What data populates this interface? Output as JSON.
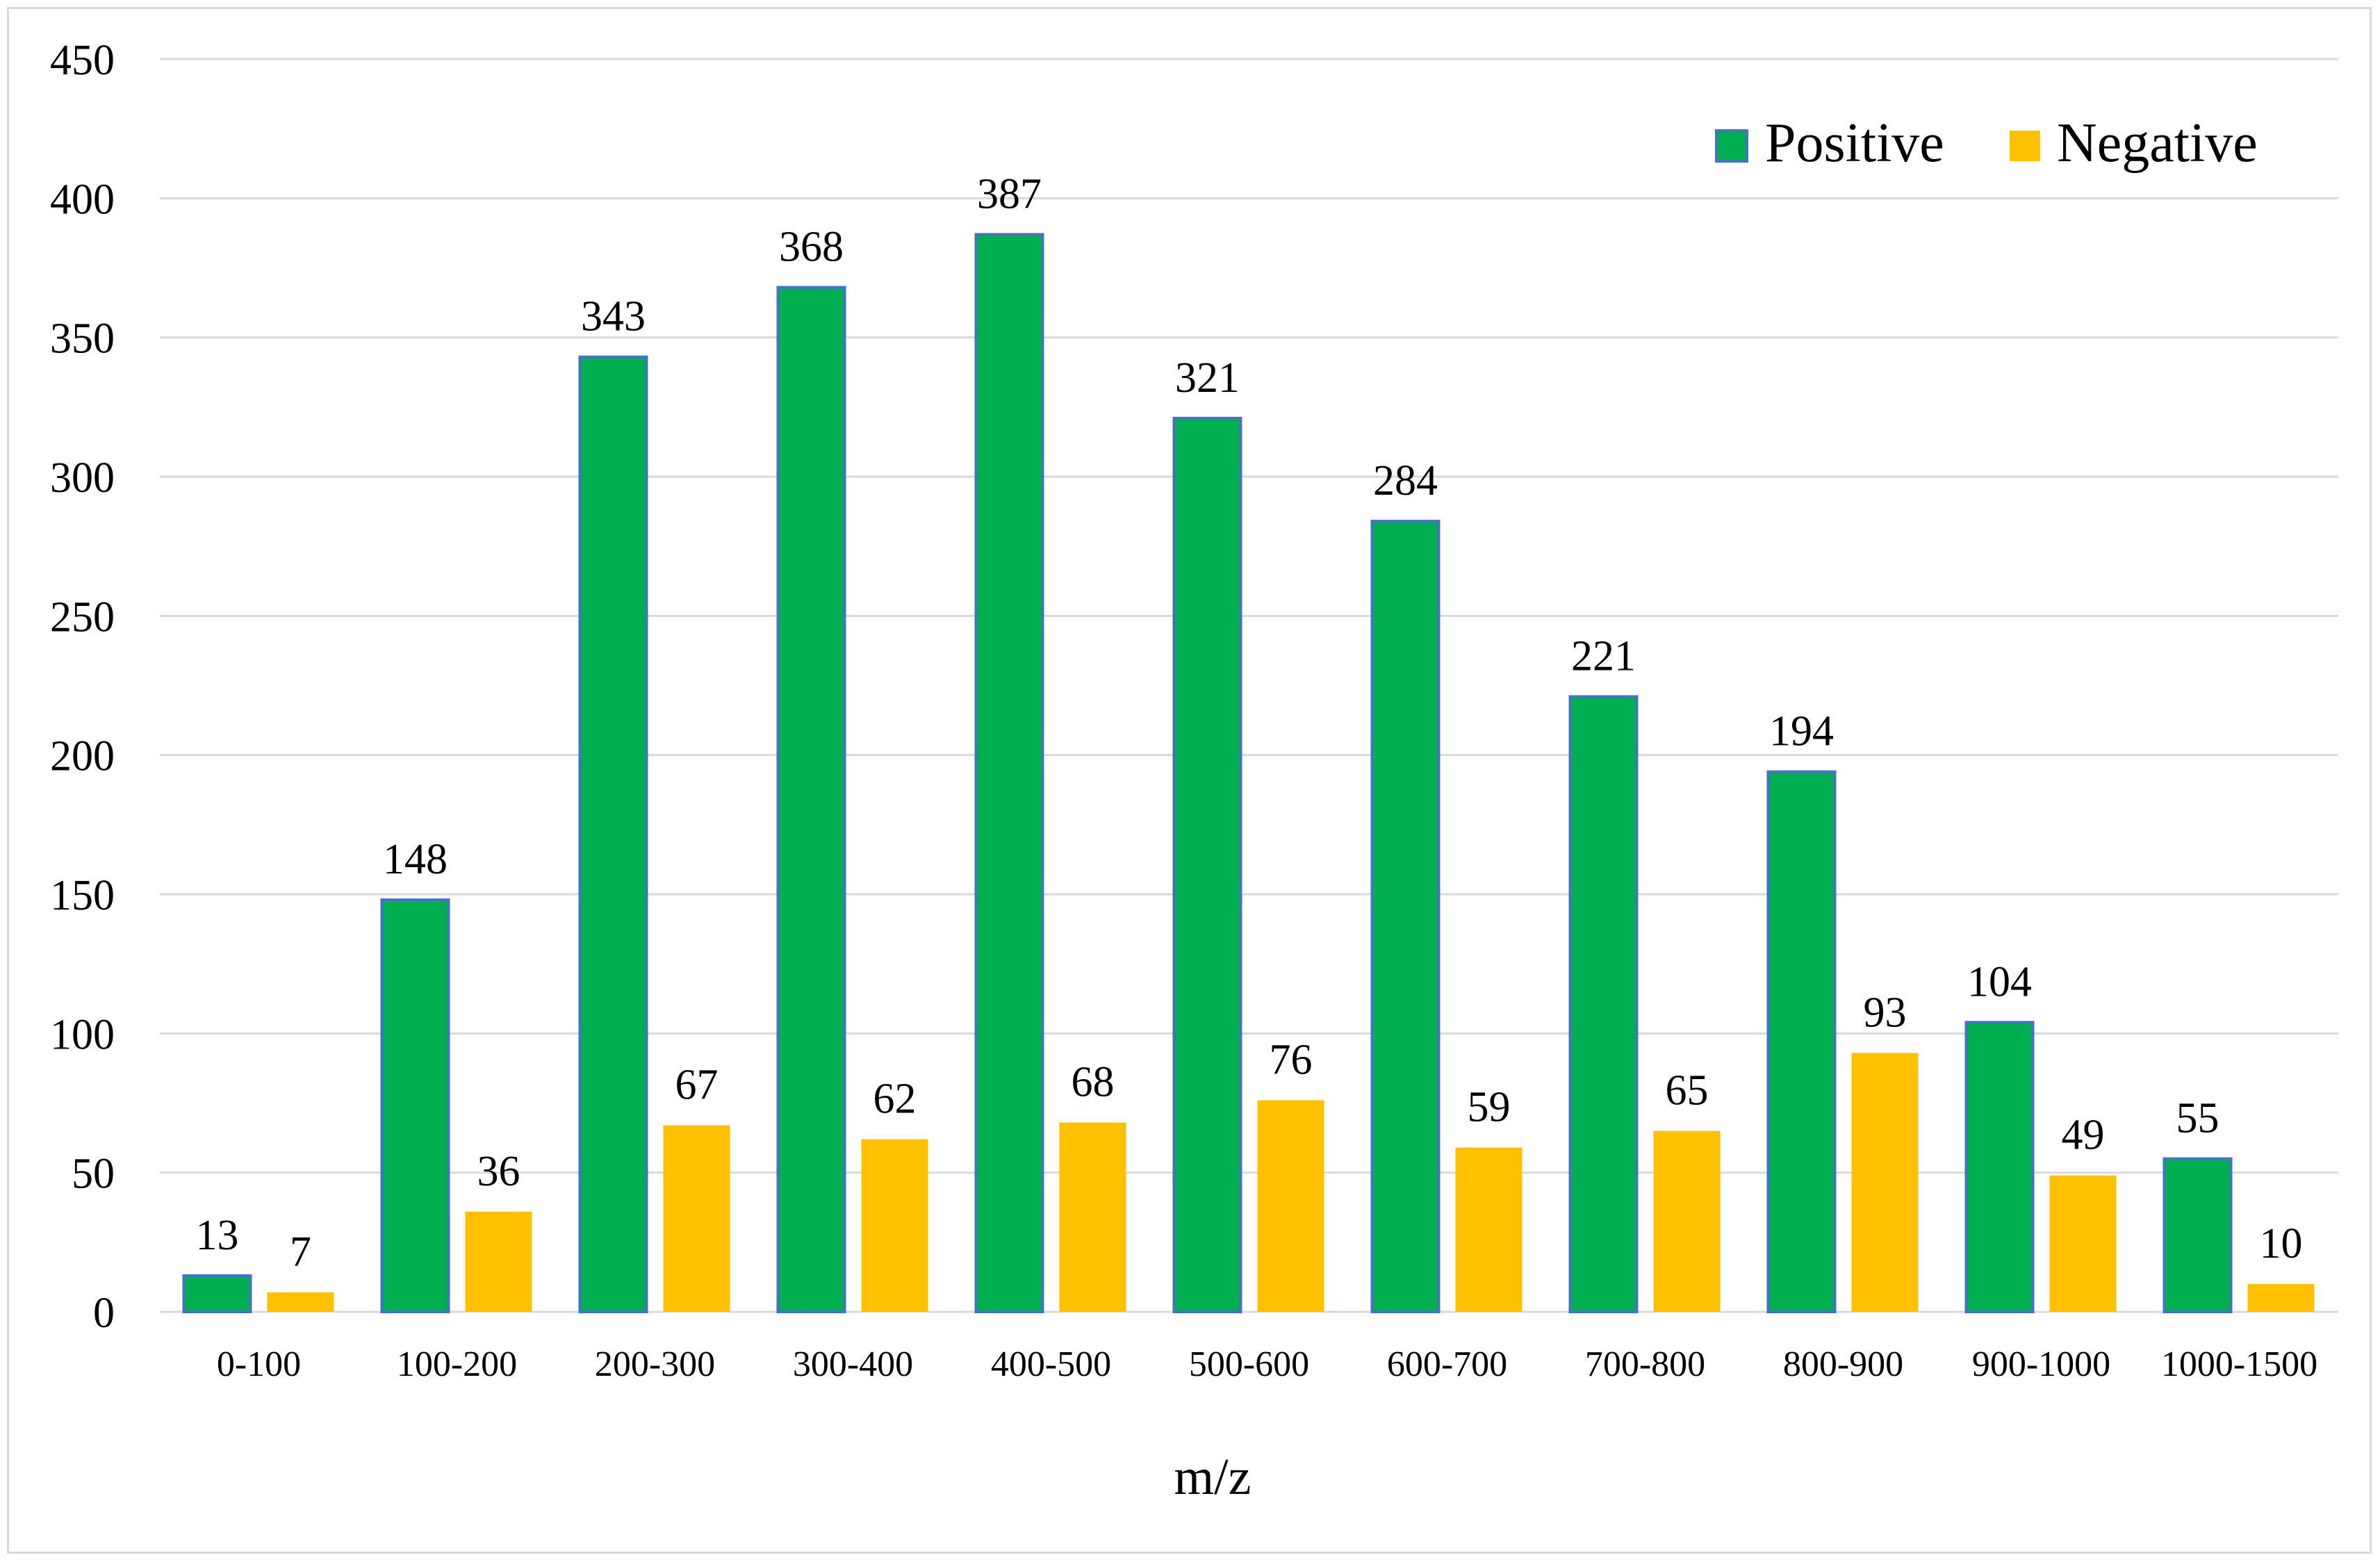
{
  "chart_data": {
    "type": "bar",
    "title": "",
    "xlabel": "m/z",
    "ylabel": "",
    "ylim": [
      0,
      450
    ],
    "ytick_step": 50,
    "yticks": [
      "0",
      "50",
      "100",
      "150",
      "200",
      "250",
      "300",
      "350",
      "400",
      "450"
    ],
    "grid": true,
    "legend_position": "top-right",
    "categories": [
      "0-100",
      "100-200",
      "200-300",
      "300-400",
      "400-500",
      "500-600",
      "600-700",
      "700-800",
      "800-900",
      "900-1000",
      "1000-1500"
    ],
    "series": [
      {
        "name": "Positive",
        "color": "#00b050",
        "edge_color": "#4472c4",
        "values": [
          13,
          148,
          343,
          368,
          387,
          321,
          284,
          221,
          194,
          104,
          55
        ],
        "labels": [
          "13",
          "148",
          "343",
          "368",
          "387",
          "321",
          "284",
          "221",
          "194",
          "104",
          "55"
        ]
      },
      {
        "name": "Negative",
        "color": "#ffc000",
        "edge_color": "#ffc000",
        "values": [
          7,
          36,
          67,
          62,
          68,
          76,
          59,
          65,
          93,
          49,
          10
        ],
        "labels": [
          "7",
          "36",
          "67",
          "62",
          "68",
          "76",
          "59",
          "65",
          "93",
          "49",
          "10"
        ]
      }
    ],
    "gridline_color": "#d9d9d9",
    "frame_color": "#d9d9d9"
  }
}
